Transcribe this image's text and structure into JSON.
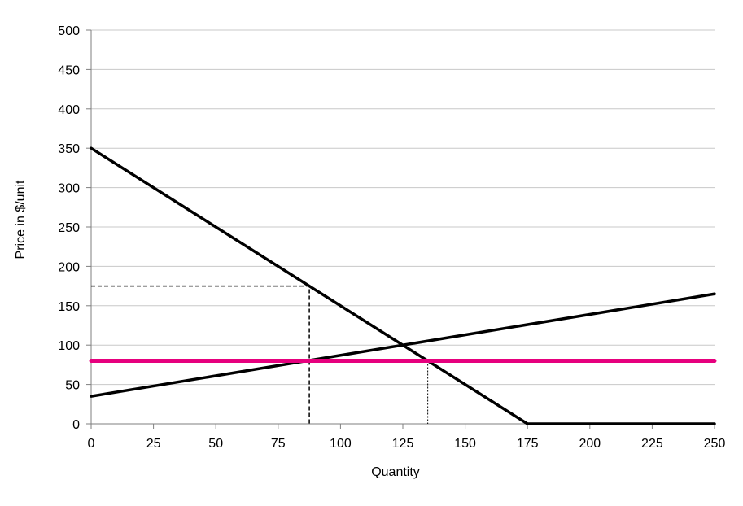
{
  "chart_data": {
    "type": "line",
    "title": "",
    "xlabel": "Quantity",
    "ylabel": "Price in $/unit",
    "xlim": [
      0,
      250
    ],
    "ylim": [
      0,
      500
    ],
    "x_ticks": [
      0,
      25,
      50,
      75,
      100,
      125,
      150,
      175,
      200,
      225,
      250
    ],
    "y_ticks": [
      0,
      50,
      100,
      150,
      200,
      250,
      300,
      350,
      400,
      450,
      500
    ],
    "grid": "horizontal",
    "legend": "none",
    "series": [
      {
        "color": "#000000",
        "points": [
          [
            0,
            350
          ],
          [
            175,
            0
          ],
          [
            250,
            0
          ]
        ]
      },
      {
        "color": "#000000",
        "points": [
          [
            0,
            35
          ],
          [
            250,
            165
          ]
        ]
      },
      {
        "color": "#e6007e",
        "points": [
          [
            0,
            80
          ],
          [
            250,
            80
          ]
        ]
      }
    ],
    "reference_lines": [
      {
        "style": "dashed",
        "points": [
          [
            0,
            175
          ],
          [
            87.5,
            175
          ],
          [
            87.5,
            0
          ]
        ]
      },
      {
        "style": "dotted",
        "points": [
          [
            135,
            80
          ],
          [
            135,
            0
          ]
        ]
      }
    ]
  }
}
